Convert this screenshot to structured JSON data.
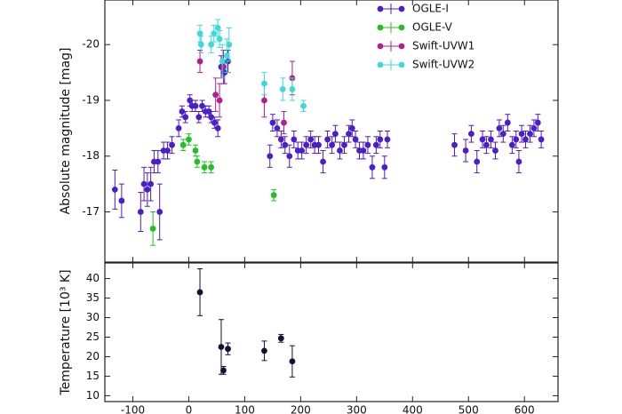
{
  "chart_data": [
    {
      "type": "scatter",
      "ylabel": "Absolute magnitude [mag]",
      "xlim": [
        -150,
        660
      ],
      "ylim": [
        -16.1,
        -20.8
      ],
      "yticks": [
        -20,
        -19,
        -18,
        -17
      ],
      "legend": "upper right",
      "series": [
        {
          "name": "OGLE-I",
          "color": "#4a1ec8",
          "x": [
            -132,
            -120,
            -86,
            -80,
            -74,
            -68,
            -62,
            -55,
            -52,
            -45,
            -38,
            -30,
            -18,
            -12,
            -6,
            2,
            6,
            12,
            18,
            24,
            30,
            36,
            40,
            46,
            52,
            58,
            64,
            70,
            145,
            150,
            158,
            165,
            172,
            180,
            188,
            195,
            202,
            210,
            218,
            225,
            232,
            240,
            248,
            256,
            262,
            270,
            278,
            286,
            292,
            298,
            305,
            312,
            320,
            328,
            335,
            342,
            350,
            355,
            475,
            495,
            505,
            515,
            525,
            532,
            540,
            548,
            555,
            562,
            570,
            578,
            585,
            590,
            595,
            602,
            610,
            617,
            624,
            630
          ],
          "values": [
            -17.4,
            -17.2,
            -17.0,
            -17.5,
            -17.4,
            -17.5,
            -17.9,
            -17.9,
            -17.0,
            -18.1,
            -18.1,
            -18.2,
            -18.5,
            -18.8,
            -18.7,
            -19.0,
            -18.9,
            -18.9,
            -18.7,
            -18.9,
            -18.8,
            -18.8,
            -18.7,
            -18.6,
            -18.5,
            -19.6,
            -19.5,
            -19.7,
            -18.0,
            -18.6,
            -18.5,
            -18.3,
            -18.2,
            -18.0,
            -18.3,
            -18.1,
            -18.1,
            -18.2,
            -18.3,
            -18.2,
            -18.2,
            -17.9,
            -18.3,
            -18.2,
            -18.4,
            -18.1,
            -18.2,
            -18.4,
            -18.5,
            -18.3,
            -18.1,
            -18.1,
            -18.2,
            -17.8,
            -18.2,
            -18.3,
            -17.8,
            -18.3,
            -18.2,
            -18.1,
            -18.4,
            -17.9,
            -18.3,
            -18.2,
            -18.3,
            -18.1,
            -18.5,
            -18.4,
            -18.6,
            -18.2,
            -18.3,
            -17.9,
            -18.4,
            -18.3,
            -18.4,
            -18.5,
            -18.6,
            -18.3
          ],
          "errors": [
            0.35,
            0.3,
            0.35,
            0.3,
            0.3,
            0.3,
            0.2,
            0.2,
            0.5,
            0.15,
            0.15,
            0.15,
            0.15,
            0.1,
            0.1,
            0.1,
            0.1,
            0.1,
            0.1,
            0.1,
            0.1,
            0.1,
            0.1,
            0.1,
            0.15,
            0.2,
            0.2,
            0.2,
            0.2,
            0.15,
            0.15,
            0.15,
            0.15,
            0.2,
            0.15,
            0.15,
            0.15,
            0.15,
            0.15,
            0.15,
            0.15,
            0.2,
            0.15,
            0.15,
            0.15,
            0.15,
            0.15,
            0.15,
            0.15,
            0.15,
            0.15,
            0.15,
            0.15,
            0.2,
            0.15,
            0.15,
            0.2,
            0.15,
            0.2,
            0.2,
            0.15,
            0.2,
            0.15,
            0.15,
            0.15,
            0.15,
            0.15,
            0.15,
            0.15,
            0.15,
            0.15,
            0.2,
            0.15,
            0.15,
            0.15,
            0.15,
            0.15,
            0.15
          ]
        },
        {
          "name": "OGLE-V",
          "color": "#22c022",
          "x": [
            -64,
            -10,
            0,
            12,
            15,
            28,
            40,
            152
          ],
          "values": [
            -16.7,
            -18.2,
            -18.3,
            -18.1,
            -17.9,
            -17.8,
            -17.8,
            -17.3
          ],
          "errors": [
            0.3,
            0.1,
            0.1,
            0.1,
            0.1,
            0.1,
            0.1,
            0.1
          ]
        },
        {
          "name": "Swift-UVW1",
          "color": "#b0208e",
          "x": [
            20,
            48,
            55,
            62,
            135,
            170,
            185
          ],
          "values": [
            -19.7,
            -19.1,
            -19.0,
            -19.6,
            -19.0,
            -18.6,
            -19.4
          ],
          "errors": [
            0.2,
            0.3,
            0.3,
            0.3,
            0.3,
            0.2,
            0.3
          ]
        },
        {
          "name": "Swift-UVW2",
          "color": "#40d8d8",
          "x": [
            20,
            22,
            40,
            45,
            52,
            55,
            60,
            68,
            72,
            135,
            168,
            185,
            205
          ],
          "values": [
            -20.2,
            -20.0,
            -20.0,
            -20.2,
            -20.3,
            -20.1,
            -19.7,
            -19.8,
            -20.0,
            -19.3,
            -19.2,
            -19.2,
            -18.9
          ],
          "errors": [
            0.15,
            0.15,
            0.15,
            0.15,
            0.15,
            0.15,
            0.3,
            0.3,
            0.3,
            0.2,
            0.2,
            0.2,
            0.1
          ]
        }
      ]
    },
    {
      "type": "scatter",
      "ylabel": "Temperature [10³ K]",
      "xlim": [
        -150,
        660
      ],
      "xticks": [
        -100,
        0,
        100,
        200,
        300,
        400,
        500,
        600
      ],
      "ylim": [
        8.5,
        44
      ],
      "yticks": [
        10,
        15,
        20,
        25,
        30,
        35,
        40
      ],
      "series": [
        {
          "color": "#111133",
          "x": [
            20,
            58,
            62,
            70,
            135,
            165,
            185
          ],
          "values": [
            36.5,
            22.5,
            16.5,
            22,
            21.5,
            24.7,
            18.8
          ],
          "errors": [
            6,
            7,
            1,
            1.5,
            2.5,
            1,
            4
          ]
        }
      ]
    }
  ]
}
